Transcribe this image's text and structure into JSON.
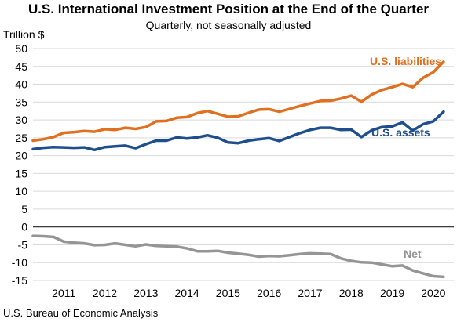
{
  "chart_data": {
    "type": "line",
    "title": "U.S. International Investment Position at the End of the Quarter",
    "subtitle": "Quarterly, not seasonally adjusted",
    "ylabel": "Trillion $",
    "source": "U.S. Bureau of Economic Analysis",
    "ylim": [
      -15,
      50
    ],
    "yticks": [
      50,
      45,
      40,
      35,
      30,
      25,
      20,
      15,
      10,
      5,
      0,
      -5,
      -10,
      -15
    ],
    "xlim": [
      2010.75,
      2021.0
    ],
    "xtick_labels": [
      "2011",
      "2012",
      "2013",
      "2014",
      "2015",
      "2016",
      "2017",
      "2018",
      "2019",
      "2020"
    ],
    "xtick_positions": [
      2011.5,
      2012.5,
      2013.5,
      2014.5,
      2015.5,
      2016.5,
      2017.5,
      2018.5,
      2019.5,
      2020.5
    ],
    "x": [
      2010.75,
      2011.0,
      2011.25,
      2011.5,
      2011.75,
      2012.0,
      2012.25,
      2012.5,
      2012.75,
      2013.0,
      2013.25,
      2013.5,
      2013.75,
      2014.0,
      2014.25,
      2014.5,
      2014.75,
      2015.0,
      2015.25,
      2015.5,
      2015.75,
      2016.0,
      2016.25,
      2016.5,
      2016.75,
      2017.0,
      2017.25,
      2017.5,
      2017.75,
      2018.0,
      2018.25,
      2018.5,
      2018.75,
      2019.0,
      2019.25,
      2019.5,
      2019.75,
      2020.0,
      2020.25,
      2020.5,
      2020.75
    ],
    "series": [
      {
        "name": "U.S. liabilities",
        "color": "#E07020",
        "values": [
          24.2,
          24.6,
          25.2,
          26.4,
          26.6,
          26.9,
          26.7,
          27.4,
          27.2,
          27.8,
          27.5,
          28.0,
          29.6,
          29.7,
          30.6,
          30.8,
          31.9,
          32.5,
          31.7,
          30.9,
          31.0,
          32.0,
          32.9,
          33.0,
          32.3,
          33.1,
          33.9,
          34.6,
          35.3,
          35.4,
          36.0,
          36.8,
          35.1,
          37.1,
          38.4,
          39.2,
          40.1,
          39.2,
          41.8,
          43.4,
          46.3
        ]
      },
      {
        "name": "U.S. assets",
        "color": "#1F4E8C",
        "values": [
          21.8,
          22.2,
          22.4,
          22.3,
          22.2,
          22.3,
          21.6,
          22.4,
          22.6,
          22.8,
          22.1,
          23.2,
          24.2,
          24.2,
          25.1,
          24.8,
          25.1,
          25.7,
          25.0,
          23.7,
          23.5,
          24.2,
          24.6,
          24.9,
          24.1,
          25.2,
          26.3,
          27.2,
          27.8,
          27.8,
          27.2,
          27.3,
          25.2,
          27.1,
          28.0,
          28.2,
          29.3,
          27.0,
          28.8,
          29.6,
          32.3
        ]
      },
      {
        "name": "Net",
        "color": "#959595",
        "values": [
          -2.5,
          -2.6,
          -2.8,
          -4.1,
          -4.4,
          -4.6,
          -5.1,
          -5.0,
          -4.6,
          -5.0,
          -5.4,
          -4.9,
          -5.3,
          -5.4,
          -5.5,
          -6.0,
          -6.8,
          -6.8,
          -6.7,
          -7.2,
          -7.5,
          -7.8,
          -8.3,
          -8.1,
          -8.2,
          -7.9,
          -7.6,
          -7.4,
          -7.5,
          -7.6,
          -8.8,
          -9.5,
          -9.9,
          -10.0,
          -10.5,
          -11.0,
          -10.8,
          -12.2,
          -13.0,
          -13.8,
          -14.0
        ]
      }
    ],
    "grid": "horizontal",
    "legend": "none (direct labels)"
  }
}
